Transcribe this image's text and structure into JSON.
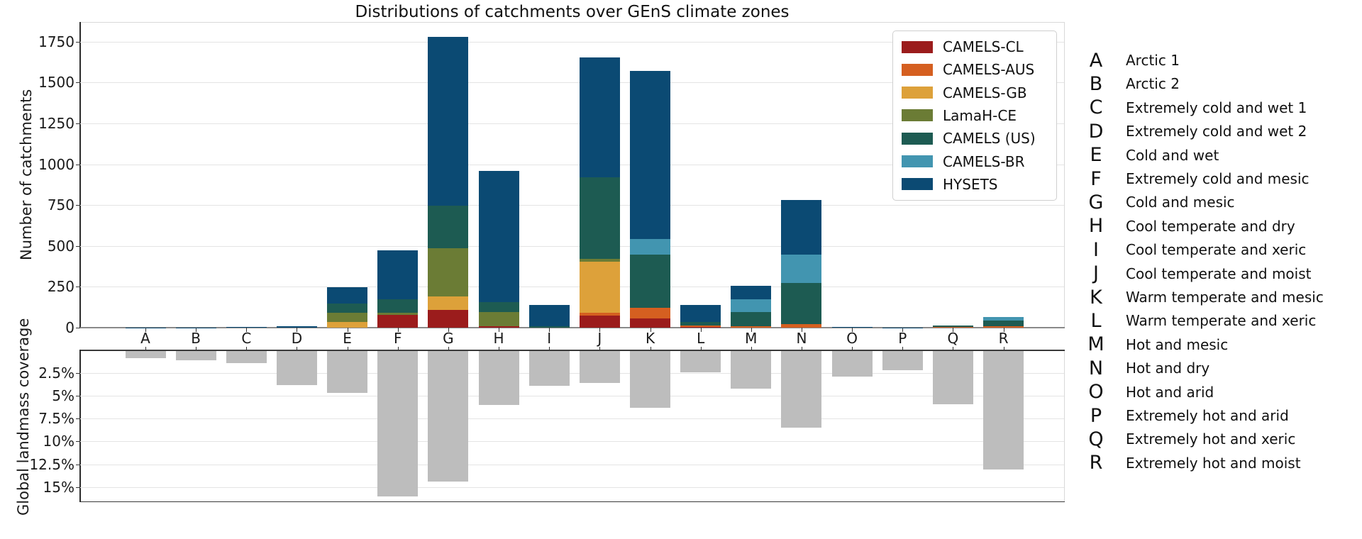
{
  "title": "Distributions of catchments over GEnS climate zones",
  "colors": {
    "camels_cl": "#9b1c1c",
    "camels_aus": "#d55f20",
    "camels_gb": "#dda13a",
    "lamah_ce": "#6b7c35",
    "camels_us": "#1d5b52",
    "camels_br": "#4295b0",
    "hysets": "#0b4a73",
    "coverage_bar": "#bdbdbd",
    "gridline": "#e4e4e4",
    "text": "#1a1a1a"
  },
  "chart_data": [
    {
      "type": "bar",
      "stacked": true,
      "title": "Distributions of catchments over GEnS climate zones",
      "xlabel": "",
      "ylabel": "Number of catchments",
      "categories": [
        "A",
        "B",
        "C",
        "D",
        "E",
        "F",
        "G",
        "H",
        "I",
        "J",
        "K",
        "L",
        "M",
        "N",
        "O",
        "P",
        "Q",
        "R"
      ],
      "yticks": [
        0,
        250,
        500,
        750,
        1000,
        1250,
        1500,
        1750
      ],
      "ylim": [
        0,
        1870
      ],
      "grid": true,
      "legend_position": "upper right",
      "series": [
        {
          "name": "CAMELS-CL",
          "color": "#9b1c1c",
          "values": [
            0,
            0,
            0,
            0,
            0,
            80,
            110,
            10,
            0,
            75,
            55,
            5,
            0,
            0,
            0,
            0,
            0,
            0
          ]
        },
        {
          "name": "CAMELS-AUS",
          "color": "#d55f20",
          "values": [
            0,
            0,
            0,
            0,
            0,
            0,
            0,
            0,
            0,
            17,
            65,
            8,
            8,
            22,
            0,
            0,
            4,
            10
          ]
        },
        {
          "name": "CAMELS-GB",
          "color": "#dda13a",
          "values": [
            0,
            0,
            0,
            0,
            33,
            0,
            80,
            0,
            0,
            310,
            0,
            0,
            0,
            0,
            0,
            0,
            0,
            0
          ]
        },
        {
          "name": "LamaH-CE",
          "color": "#6b7c35",
          "values": [
            0,
            0,
            0,
            0,
            60,
            10,
            298,
            84,
            0,
            20,
            0,
            0,
            0,
            0,
            0,
            0,
            0,
            0
          ]
        },
        {
          "name": "CAMELS (US)",
          "color": "#1d5b52",
          "values": [
            0,
            0,
            0,
            0,
            55,
            82,
            260,
            61,
            10,
            500,
            325,
            22,
            88,
            253,
            3,
            0,
            8,
            35
          ]
        },
        {
          "name": "CAMELS-BR",
          "color": "#4295b0",
          "values": [
            0,
            0,
            0,
            0,
            0,
            0,
            0,
            0,
            0,
            0,
            98,
            0,
            79,
            171,
            0,
            0,
            0,
            18
          ]
        },
        {
          "name": "HYSETS",
          "color": "#0b4a73",
          "values": [
            1,
            1,
            3,
            9,
            100,
            303,
            1030,
            805,
            130,
            730,
            1027,
            105,
            80,
            336,
            3,
            2,
            0,
            0
          ]
        }
      ]
    },
    {
      "type": "bar",
      "inverted": true,
      "ylabel": "Global landmass coverage",
      "categories": [
        "A",
        "B",
        "C",
        "D",
        "E",
        "F",
        "G",
        "H",
        "I",
        "J",
        "K",
        "L",
        "M",
        "N",
        "O",
        "P",
        "Q",
        "R"
      ],
      "values": [
        0.8,
        1.0,
        1.3,
        3.7,
        4.6,
        15.9,
        14.3,
        5.9,
        3.8,
        3.5,
        6.2,
        2.3,
        4.1,
        8.4,
        2.8,
        2.1,
        5.8,
        13.0
      ],
      "bar_color": "#bdbdbd",
      "yticks": [
        2.5,
        5,
        7.5,
        10,
        12.5,
        15
      ],
      "ytick_labels": [
        "2.5%",
        "5%",
        "7.5%",
        "10%",
        "12.5%",
        "15%"
      ],
      "ylim": [
        0,
        16.7
      ],
      "grid": true
    }
  ],
  "zone_legend": [
    {
      "code": "A",
      "name": "Arctic 1"
    },
    {
      "code": "B",
      "name": "Arctic 2"
    },
    {
      "code": "C",
      "name": "Extremely cold and wet 1"
    },
    {
      "code": "D",
      "name": "Extremely cold and wet 2"
    },
    {
      "code": "E",
      "name": "Cold and wet"
    },
    {
      "code": "F",
      "name": "Extremely cold and mesic"
    },
    {
      "code": "G",
      "name": "Cold and mesic"
    },
    {
      "code": "H",
      "name": "Cool temperate and dry"
    },
    {
      "code": "I",
      "name": "Cool temperate and xeric"
    },
    {
      "code": "J",
      "name": "Cool temperate and moist"
    },
    {
      "code": "K",
      "name": "Warm temperate and mesic"
    },
    {
      "code": "L",
      "name": "Warm temperate and xeric"
    },
    {
      "code": "M",
      "name": "Hot and mesic"
    },
    {
      "code": "N",
      "name": "Hot and dry"
    },
    {
      "code": "O",
      "name": "Hot and arid"
    },
    {
      "code": "P",
      "name": "Extremely hot and arid"
    },
    {
      "code": "Q",
      "name": "Extremely hot and xeric"
    },
    {
      "code": "R",
      "name": "Extremely hot and moist"
    }
  ]
}
